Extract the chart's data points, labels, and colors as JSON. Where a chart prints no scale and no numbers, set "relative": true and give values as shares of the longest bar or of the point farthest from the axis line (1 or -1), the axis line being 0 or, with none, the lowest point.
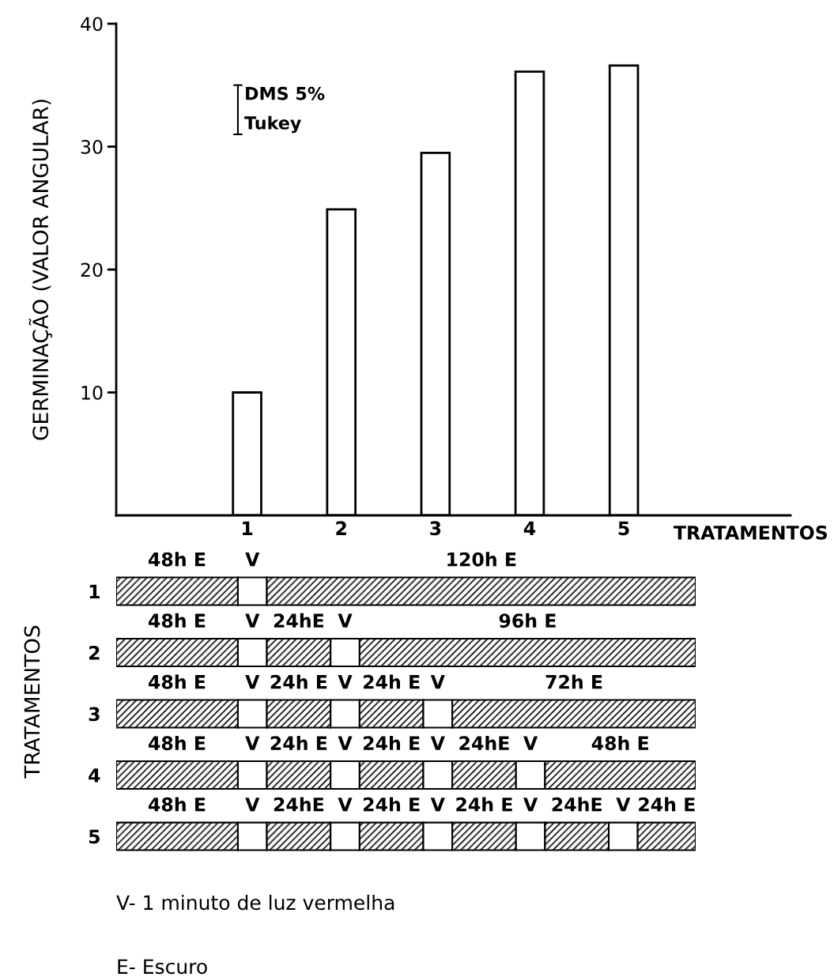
{
  "chart_data": [
    {
      "type": "bar",
      "categories": [
        "1",
        "2",
        "3",
        "4",
        "5"
      ],
      "values": [
        10.0,
        24.9,
        29.5,
        36.1,
        36.6
      ],
      "color": "#ffffff",
      "ylim": [
        0,
        40
      ],
      "yticks": [
        10,
        20,
        30,
        40
      ],
      "ylabel": "GERMINAÇÃO (VALOR ANGULAR)",
      "xlabel": "TRATAMENTOS",
      "grid": false,
      "annotations": [
        "DMS 5%",
        "Tukey"
      ]
    },
    {
      "type": "bar",
      "orientation": "horizontal",
      "stacked": true,
      "relative": true,
      "tick_labels": "y",
      "ylabel": "TRATAMENTOS",
      "categories": [
        "1",
        "2",
        "3",
        "4",
        "5"
      ],
      "series": [
        {
          "color": "#000000",
          "values": [
            0.21,
            0.21,
            0.21,
            0.21,
            0.21
          ]
        },
        {
          "color": "#ffffff",
          "values": [
            0.05,
            0.05,
            0.05,
            0.05,
            0.05
          ]
        },
        {
          "color": "#000000",
          "values": [
            0.74,
            0.11,
            0.11,
            0.11,
            0.11
          ]
        },
        {
          "color": "#ffffff",
          "values": [
            null,
            0.05,
            0.05,
            0.05,
            0.05
          ]
        },
        {
          "color": "#000000",
          "values": [
            null,
            0.58,
            0.11,
            0.11,
            0.11
          ]
        },
        {
          "color": "#ffffff",
          "values": [
            null,
            null,
            0.05,
            0.05,
            0.05
          ]
        },
        {
          "color": "#000000",
          "values": [
            null,
            null,
            0.42,
            0.11,
            0.11
          ]
        },
        {
          "color": "#ffffff",
          "values": [
            null,
            null,
            null,
            0.05,
            0.05
          ]
        },
        {
          "color": "#000000",
          "values": [
            null,
            null,
            null,
            0.26,
            0.11
          ]
        },
        {
          "color": "#ffffff",
          "values": [
            null,
            null,
            null,
            null,
            0.05
          ]
        },
        {
          "color": "#000000",
          "values": [
            null,
            null,
            null,
            null,
            0.1
          ]
        }
      ],
      "annotations": [
        "48h E",
        "V",
        "120h E",
        "48h E",
        "V",
        "24hE",
        "V",
        "96h E",
        "48h E",
        "V",
        "24h E",
        "V",
        "24h E",
        "V",
        "72h E",
        "48h E",
        "V",
        "24h E",
        "V",
        "24h E",
        "V",
        "24hE",
        "V",
        "48h E",
        "48h E",
        "V",
        "24hE",
        "V",
        "24h E",
        "V",
        "24h E",
        "V",
        "24hE",
        "V",
        "24h E",
        "V- 1 minuto de luz vermelha",
        "E- Escuro"
      ]
    }
  ]
}
